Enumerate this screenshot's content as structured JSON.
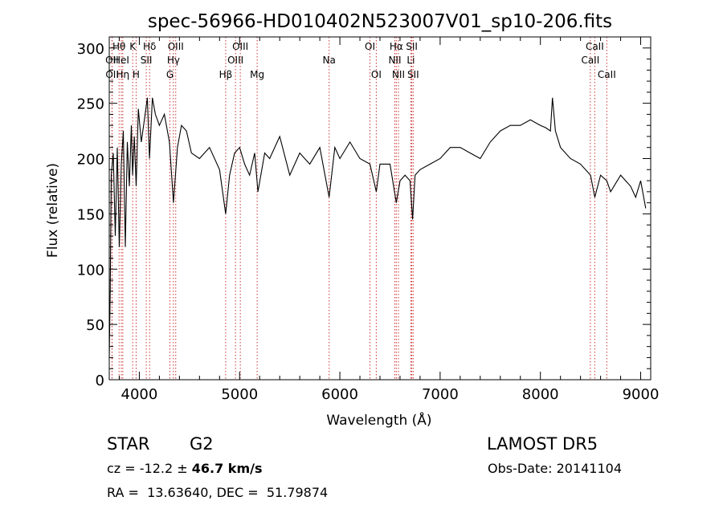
{
  "chart_data": {
    "type": "line",
    "title": "spec-56966-HD010402N523007V01_sp10-206.fits",
    "xlabel": "Wavelength (Å)",
    "ylabel": "Flux (relative)",
    "xlim": [
      3700,
      9100
    ],
    "ylim": [
      0,
      310
    ],
    "xticks": [
      4000,
      5000,
      6000,
      7000,
      8000,
      9000
    ],
    "yticks": [
      0,
      50,
      100,
      150,
      200,
      250,
      300
    ],
    "grid": false,
    "series": [
      {
        "x": [
          3700,
          3710,
          3720,
          3740,
          3760,
          3780,
          3800,
          3820,
          3840,
          3860,
          3880,
          3900,
          3920,
          3933,
          3950,
          3968,
          3990,
          4020,
          4050,
          4080,
          4101,
          4130,
          4160,
          4200,
          4250,
          4300,
          4340,
          4380,
          4420,
          4470,
          4520,
          4600,
          4700,
          4800,
          4861,
          4900,
          4950,
          5000,
          5050,
          5100,
          5150,
          5183,
          5250,
          5300,
          5400,
          5500,
          5600,
          5700,
          5800,
          5893,
          5950,
          6000,
          6100,
          6200,
          6300,
          6363,
          6400,
          6500,
          6563,
          6600,
          6650,
          6700,
          6725,
          6750,
          6800,
          6900,
          7000,
          7100,
          7200,
          7300,
          7400,
          7500,
          7600,
          7700,
          7800,
          7900,
          8000,
          8050,
          8100,
          8120,
          8150,
          8200,
          8300,
          8400,
          8500,
          8542,
          8600,
          8662,
          8700,
          8800,
          8900,
          8950,
          9000,
          9050
        ],
        "values": [
          20,
          80,
          185,
          205,
          130,
          210,
          120,
          195,
          225,
          120,
          215,
          175,
          230,
          185,
          220,
          175,
          245,
          215,
          235,
          255,
          200,
          255,
          240,
          230,
          240,
          215,
          160,
          210,
          230,
          225,
          205,
          200,
          210,
          190,
          150,
          185,
          205,
          210,
          195,
          185,
          205,
          170,
          205,
          200,
          220,
          185,
          205,
          195,
          210,
          165,
          210,
          200,
          215,
          200,
          195,
          170,
          195,
          195,
          160,
          180,
          185,
          180,
          145,
          185,
          190,
          195,
          200,
          210,
          210,
          205,
          200,
          215,
          225,
          230,
          230,
          235,
          230,
          228,
          225,
          255,
          225,
          210,
          200,
          195,
          185,
          165,
          185,
          180,
          170,
          185,
          175,
          165,
          180,
          155
        ]
      }
    ],
    "line_markers": [
      {
        "name": "Hθ",
        "x": 3798,
        "row": 0
      },
      {
        "name": "OII",
        "x": 3727,
        "row": 1
      },
      {
        "name": "OII",
        "x": 3729,
        "row": 2
      },
      {
        "name": "HeI",
        "x": 3820,
        "row": 1
      },
      {
        "name": "Hη",
        "x": 3835,
        "row": 2
      },
      {
        "name": "K",
        "x": 3934,
        "row": 0
      },
      {
        "name": "H",
        "x": 3968,
        "row": 2
      },
      {
        "name": "SII",
        "x": 4069,
        "row": 1
      },
      {
        "name": "Hδ",
        "x": 4102,
        "row": 0
      },
      {
        "name": "OIII",
        "x": 4363,
        "row": 0
      },
      {
        "name": "Hγ",
        "x": 4340,
        "row": 1
      },
      {
        "name": "G",
        "x": 4305,
        "row": 2
      },
      {
        "name": "Hβ",
        "x": 4861,
        "row": 2
      },
      {
        "name": "OIII",
        "x": 4959,
        "row": 1
      },
      {
        "name": "OIII",
        "x": 5007,
        "row": 0
      },
      {
        "name": "Mg",
        "x": 5175,
        "row": 2
      },
      {
        "name": "Na",
        "x": 5893,
        "row": 1
      },
      {
        "name": "OI",
        "x": 6300,
        "row": 0
      },
      {
        "name": "OI",
        "x": 6363,
        "row": 2
      },
      {
        "name": "Hα",
        "x": 6563,
        "row": 0
      },
      {
        "name": "NII",
        "x": 6548,
        "row": 1
      },
      {
        "name": "NII",
        "x": 6584,
        "row": 2
      },
      {
        "name": "SII",
        "x": 6717,
        "row": 0
      },
      {
        "name": "Li",
        "x": 6708,
        "row": 1
      },
      {
        "name": "SII",
        "x": 6731,
        "row": 2
      },
      {
        "name": "CaII",
        "x": 8542,
        "row": 0
      },
      {
        "name": "CaII",
        "x": 8498,
        "row": 1
      },
      {
        "name": "CaII",
        "x": 8662,
        "row": 2
      }
    ]
  },
  "info": {
    "object_type": "STAR",
    "subclass": "G2",
    "survey": "LAMOST DR5",
    "cz_prefix": "cz = -12.2 ± ",
    "cz_error": "46.7 km/s",
    "obs_date": "Obs-Date: 20141104",
    "coords": "RA =  13.63640, DEC =  51.79874"
  }
}
